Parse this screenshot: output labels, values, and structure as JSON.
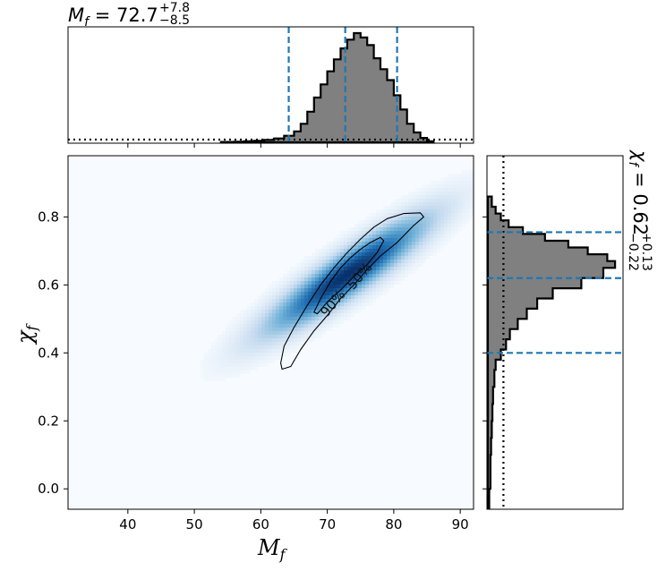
{
  "chart_data": {
    "type": "corner",
    "top_title": {
      "var": "M",
      "sub": "f",
      "eq": " = ",
      "value": "72.7",
      "plus": "+7.8",
      "minus": "−8.5"
    },
    "right_title": {
      "var": "χ",
      "sub": "f",
      "eq": " = ",
      "value": "0.62",
      "plus": "+0.13",
      "minus": "−0.22"
    },
    "xlabel": {
      "var": "M",
      "sub": "f"
    },
    "ylabel": {
      "var": "χ",
      "sub": "f"
    },
    "xlim": [
      31,
      92
    ],
    "ylim": [
      -0.06,
      0.98
    ],
    "xticks": [
      "40",
      "50",
      "60",
      "70",
      "80",
      "90"
    ],
    "yticks": [
      "0.0",
      "0.2",
      "0.4",
      "0.6",
      "0.8"
    ],
    "x_hist": {
      "bins": [
        [
          54,
          0.003
        ],
        [
          56,
          0.006
        ],
        [
          57.5,
          0.01
        ],
        [
          59,
          0.014
        ],
        [
          60.5,
          0.022
        ],
        [
          62,
          0.035
        ],
        [
          63.5,
          0.06
        ],
        [
          65,
          0.1
        ],
        [
          66,
          0.17
        ],
        [
          67,
          0.28
        ],
        [
          68,
          0.41
        ],
        [
          69,
          0.53
        ],
        [
          70,
          0.65
        ],
        [
          71,
          0.76
        ],
        [
          72,
          0.86
        ],
        [
          73,
          0.94
        ],
        [
          74,
          1.0
        ],
        [
          75,
          0.96
        ],
        [
          76,
          0.89
        ],
        [
          77,
          0.77
        ],
        [
          78,
          0.67
        ],
        [
          79,
          0.57
        ],
        [
          80,
          0.43
        ],
        [
          81,
          0.3
        ],
        [
          82,
          0.17
        ],
        [
          83,
          0.09
        ],
        [
          84,
          0.04
        ],
        [
          85,
          0.01
        ],
        [
          86,
          0.0
        ]
      ],
      "prior_level": 0.025,
      "median": 72.7,
      "lower": 64.2,
      "upper": 80.5
    },
    "y_hist": {
      "bins": [
        [
          -0.06,
          0.01
        ],
        [
          0.0,
          0.02
        ],
        [
          0.05,
          0.02
        ],
        [
          0.1,
          0.025
        ],
        [
          0.15,
          0.03
        ],
        [
          0.2,
          0.035
        ],
        [
          0.25,
          0.04
        ],
        [
          0.3,
          0.05
        ],
        [
          0.35,
          0.06
        ],
        [
          0.38,
          0.1
        ],
        [
          0.41,
          0.14
        ],
        [
          0.44,
          0.17
        ],
        [
          0.47,
          0.23
        ],
        [
          0.5,
          0.3
        ],
        [
          0.53,
          0.38
        ],
        [
          0.56,
          0.5
        ],
        [
          0.59,
          0.72
        ],
        [
          0.62,
          0.89
        ],
        [
          0.65,
          0.98
        ],
        [
          0.67,
          0.92
        ],
        [
          0.69,
          0.77
        ],
        [
          0.71,
          0.62
        ],
        [
          0.73,
          0.44
        ],
        [
          0.75,
          0.27
        ],
        [
          0.77,
          0.16
        ],
        [
          0.79,
          0.1
        ],
        [
          0.81,
          0.06
        ],
        [
          0.83,
          0.03
        ],
        [
          0.86,
          0.0
        ]
      ],
      "prior_level": 0.12,
      "median": 0.62,
      "lower": 0.4,
      "upper": 0.755
    },
    "kde_ridge": {
      "slope": 0.0127,
      "x0": 73,
      "y0": 0.63
    },
    "contours": [
      {
        "label": "50%",
        "points": [
          [
            68,
            0.52
          ],
          [
            69,
            0.56
          ],
          [
            70.5,
            0.61
          ],
          [
            72,
            0.65
          ],
          [
            73.5,
            0.68
          ],
          [
            75,
            0.705
          ],
          [
            76.5,
            0.725
          ],
          [
            78,
            0.74
          ],
          [
            78.5,
            0.73
          ],
          [
            77.5,
            0.695
          ],
          [
            76,
            0.66
          ],
          [
            74,
            0.625
          ],
          [
            72,
            0.585
          ],
          [
            70,
            0.55
          ],
          [
            68.5,
            0.515
          ]
        ]
      },
      {
        "label": "90%",
        "points": [
          [
            63,
            0.37
          ],
          [
            63.5,
            0.42
          ],
          [
            65,
            0.475
          ],
          [
            67,
            0.54
          ],
          [
            69,
            0.6
          ],
          [
            71,
            0.65
          ],
          [
            73,
            0.695
          ],
          [
            75,
            0.735
          ],
          [
            77,
            0.77
          ],
          [
            79,
            0.795
          ],
          [
            81.5,
            0.81
          ],
          [
            84,
            0.812
          ],
          [
            84.5,
            0.8
          ],
          [
            83,
            0.775
          ],
          [
            80.5,
            0.725
          ],
          [
            78,
            0.685
          ],
          [
            76,
            0.645
          ],
          [
            74,
            0.6
          ],
          [
            72,
            0.56
          ],
          [
            70,
            0.51
          ],
          [
            68,
            0.465
          ],
          [
            66,
            0.41
          ],
          [
            64.5,
            0.36
          ],
          [
            63.2,
            0.352
          ]
        ]
      }
    ],
    "contour_labels": [
      {
        "text": "50%",
        "x": 74.9,
        "y": 0.625,
        "angle": -50
      },
      {
        "text": "90%",
        "x": 70.9,
        "y": 0.545,
        "angle": -50
      }
    ],
    "colors": {
      "hist_fill": "#808080",
      "hist_edge": "#000000",
      "quantile_line": "#1f77b4",
      "density": "#08519c",
      "contour": "#000000"
    }
  }
}
